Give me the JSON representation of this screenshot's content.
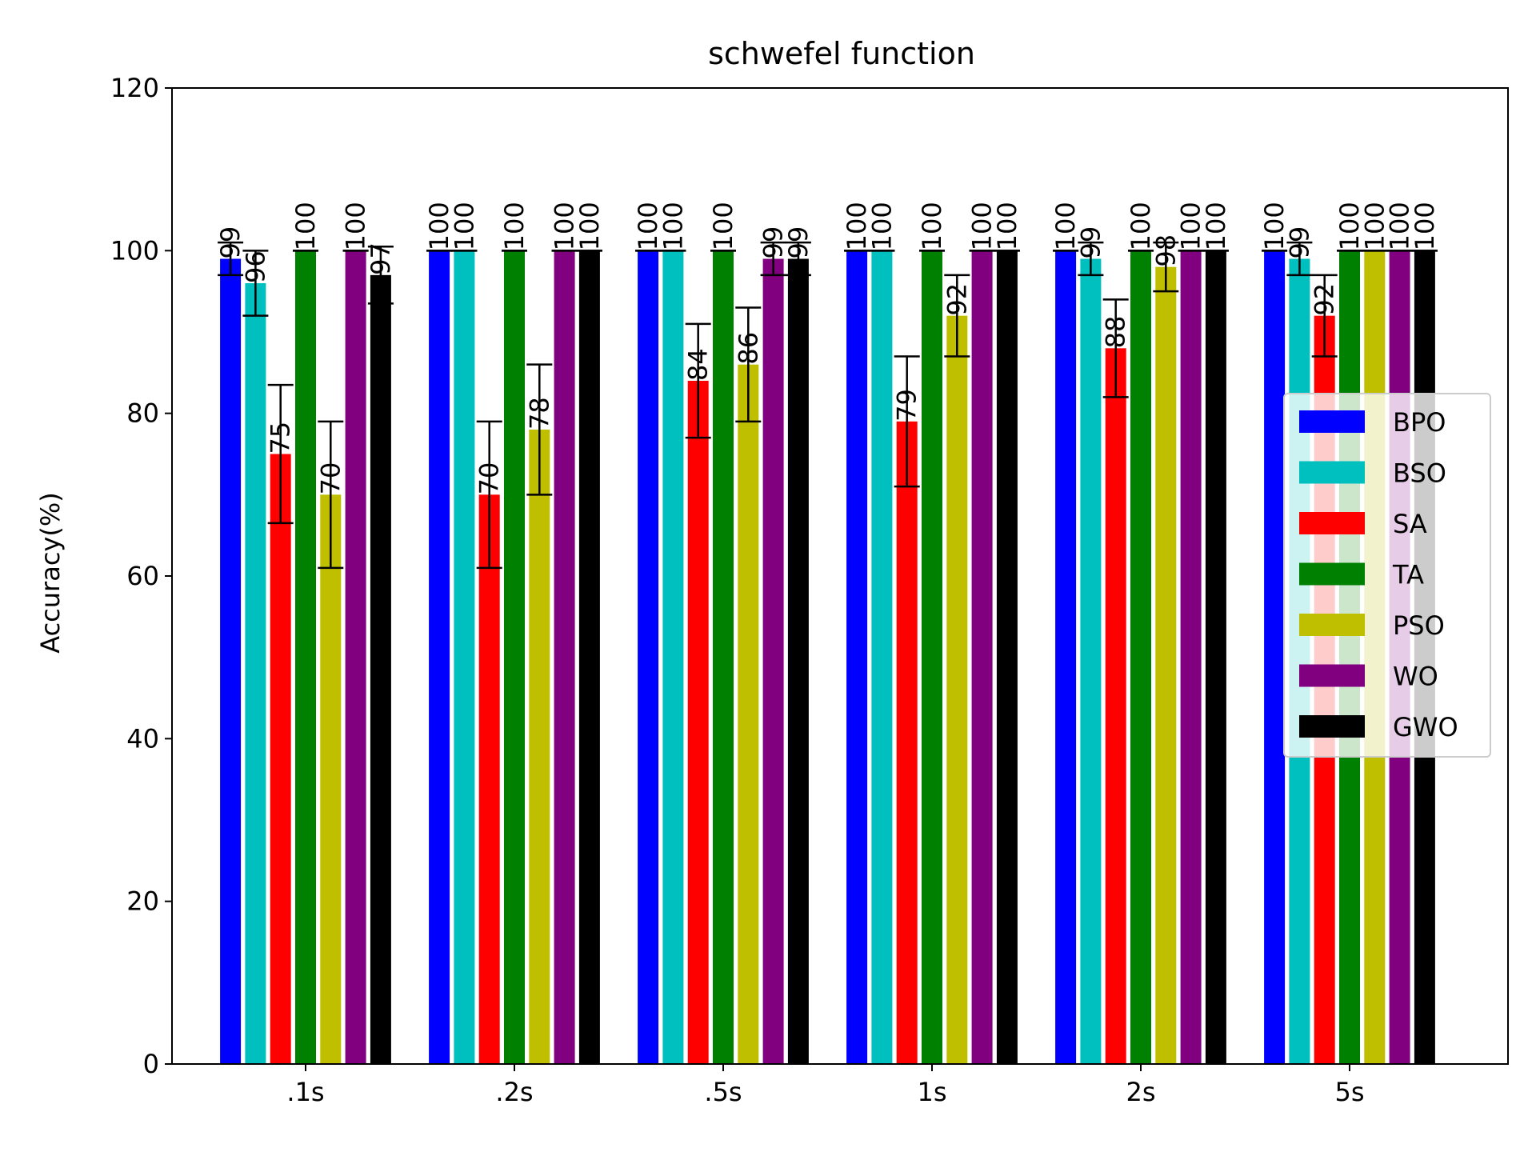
{
  "chart_data": {
    "type": "bar",
    "title": "schwefel function",
    "xlabel": "",
    "ylabel": "Accuracy(%)",
    "ylim": [
      0,
      120
    ],
    "yticks": [
      0,
      20,
      40,
      60,
      80,
      100,
      120
    ],
    "categories": [
      ".1s",
      ".2s",
      ".5s",
      "1s",
      "2s",
      "5s"
    ],
    "legend_position": "center-right",
    "series": [
      {
        "name": "BPO",
        "color": "#0000ff",
        "values": [
          99,
          100,
          100,
          100,
          100,
          100
        ],
        "errors": [
          2,
          0,
          0,
          0,
          0,
          0
        ],
        "labels": [
          "99",
          "100",
          "100",
          "100",
          "100",
          "100"
        ]
      },
      {
        "name": "BSO",
        "color": "#00bfbf",
        "values": [
          96,
          100,
          100,
          100,
          99,
          99
        ],
        "errors": [
          4,
          0,
          0,
          0,
          2,
          2
        ],
        "labels": [
          "96",
          "100",
          "100",
          "100",
          "99",
          "99"
        ]
      },
      {
        "name": "SA",
        "color": "#ff0000",
        "values": [
          75,
          70,
          84,
          79,
          88,
          92
        ],
        "errors": [
          8.5,
          9,
          7,
          8,
          6,
          5
        ],
        "labels": [
          "75",
          "70",
          "84",
          "79",
          "88",
          "92"
        ]
      },
      {
        "name": "TA",
        "color": "#008000",
        "values": [
          100,
          100,
          100,
          100,
          100,
          100
        ],
        "errors": [
          0,
          0,
          0,
          0,
          0,
          0
        ],
        "labels": [
          "100",
          "100",
          "100",
          "100",
          "100",
          "100"
        ]
      },
      {
        "name": "PSO",
        "color": "#bfbf00",
        "values": [
          70,
          78,
          86,
          92,
          98,
          100
        ],
        "errors": [
          9,
          8,
          7,
          5,
          3,
          0
        ],
        "labels": [
          "70",
          "78",
          "86",
          "92",
          "98",
          "100"
        ]
      },
      {
        "name": "WO",
        "color": "#800080",
        "values": [
          100,
          100,
          99,
          100,
          100,
          100
        ],
        "errors": [
          0,
          0,
          2,
          0,
          0,
          0
        ],
        "labels": [
          "100",
          "100",
          "99",
          "100",
          "100",
          "100"
        ]
      },
      {
        "name": "GWO",
        "color": "#000000",
        "values": [
          97,
          100,
          99,
          100,
          100,
          100
        ],
        "errors": [
          3.5,
          0,
          2,
          0,
          0,
          0
        ],
        "labels": [
          "97",
          "100",
          "99",
          "100",
          "100",
          "100"
        ]
      }
    ]
  }
}
